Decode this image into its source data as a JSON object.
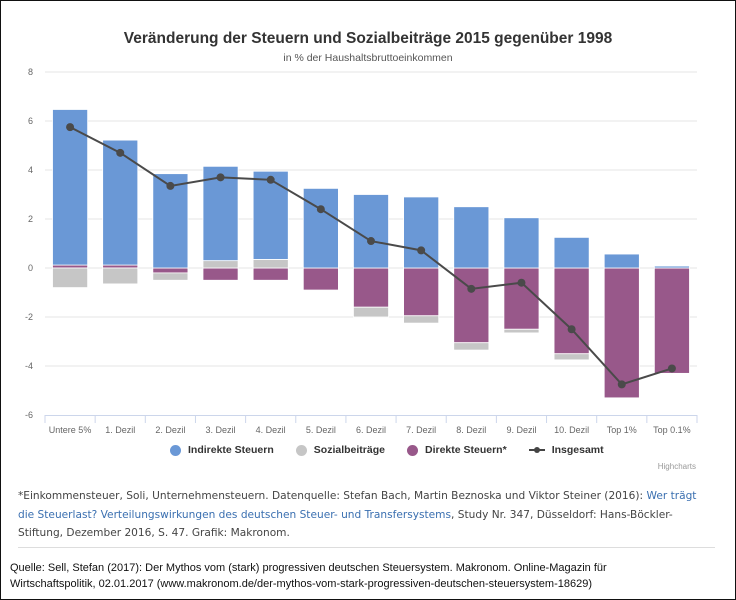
{
  "chart_data": {
    "type": "bar",
    "stacked": true,
    "title": "Veränderung der Steuern und Sozialbeiträge 2015 gegenüber 1998",
    "subtitle": "in % der Haushaltsbruttoeinkommen",
    "xlabel": "",
    "ylabel": "",
    "ylim": [
      -6,
      8
    ],
    "yticks": [
      "8",
      "6",
      "4",
      "2",
      "0",
      "-2",
      "-4",
      "-6"
    ],
    "ytick_values": [
      8,
      6,
      4,
      2,
      0,
      -2,
      -4,
      -6
    ],
    "grid": true,
    "legend_position": "bottom-center",
    "categories": [
      "Untere 5%",
      "1. Dezil",
      "2. Dezil",
      "3. Dezil",
      "4. Dezil",
      "5. Dezil",
      "6. Dezil",
      "7. Dezil",
      "8. Dezil",
      "9. Dezil",
      "10. Dezil",
      "Top 1%",
      "Top 0.1%"
    ],
    "series": [
      {
        "name": "Indirekte Steuern",
        "type": "bar",
        "color": "#6a98d6",
        "values": [
          6.35,
          5.1,
          3.85,
          3.85,
          3.6,
          3.25,
          3.0,
          2.9,
          2.5,
          2.05,
          1.25,
          0.57,
          0.0
        ]
      },
      {
        "name": "Sozialbeiträge",
        "type": "bar",
        "color": "#c6c6c6",
        "values": [
          -0.8,
          -0.65,
          -0.3,
          0.3,
          0.35,
          0.0,
          -0.4,
          -0.3,
          -0.3,
          -0.15,
          -0.25,
          0.0,
          0.0
        ]
      },
      {
        "name": "Direkte Steuern*",
        "type": "bar",
        "color": "#98588a",
        "values": [
          0.12,
          0.12,
          -0.2,
          -0.5,
          -0.5,
          -0.9,
          -1.6,
          -1.95,
          -3.05,
          -2.5,
          -3.5,
          -5.3,
          -4.3
        ]
      },
      {
        "name": "Insgesamt",
        "type": "line",
        "color": "#4a4a4a",
        "values": [
          5.75,
          4.7,
          3.35,
          3.7,
          3.6,
          2.4,
          1.1,
          0.72,
          -0.85,
          -0.6,
          -2.5,
          -4.75,
          -4.1
        ]
      }
    ],
    "top01_indirect_sliver": 0.08,
    "credits": "Highcharts"
  },
  "legend": [
    {
      "label": "Indirekte Steuern",
      "color": "#6a98d6",
      "symbol": "circle"
    },
    {
      "label": "Sozialbeiträge",
      "color": "#c6c6c6",
      "symbol": "circle"
    },
    {
      "label": "Direkte Steuern*",
      "color": "#98588a",
      "symbol": "circle"
    },
    {
      "label": "Insgesamt",
      "color": "#4a4a4a",
      "symbol": "line-marker"
    }
  ],
  "note": {
    "prefix": "*Einkommensteuer, Soli, Unternehmensteuern. Datenquelle: Stefan Bach, Martin Beznoska und Viktor Steiner (2016): ",
    "link": "Wer trägt die Steuerlast? Verteilungswirkungen des deutschen Steuer- und Transfersystems",
    "suffix": ", Study Nr. 347, Düsseldorf: Hans-Böckler-Stiftung, Dezember 2016, S. 47. Grafik: Makronom."
  },
  "source": {
    "line1": "Quelle: Sell, Stefan (2017): Der Mythos vom (stark) progressiven deutschen Steuersystem. Makronom. Online-Magazin für",
    "line2": "Wirtschaftspolitik, 02.01.2017  (www.makronom.de/der-mythos-vom-stark-progressiven-deutschen-steuersystem-18629)"
  }
}
